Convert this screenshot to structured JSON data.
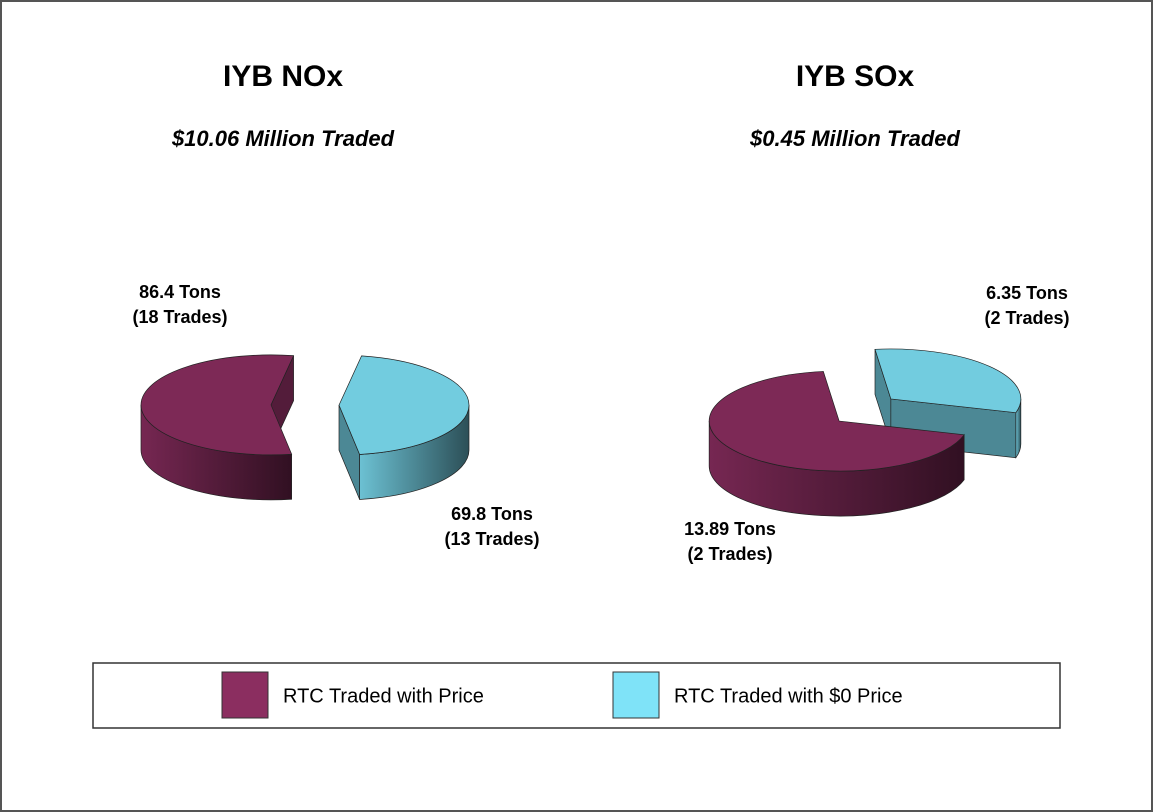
{
  "legend": {
    "labels": [
      "RTC Traded with Price",
      "RTC Traded with $0 Price"
    ],
    "colors": [
      "#8b2e60",
      "#7fe3f8"
    ]
  },
  "chart_data": [
    {
      "type": "pie",
      "title": "IYB NOx",
      "subtitle": "$10.06 Million Traded",
      "values": [
        86.4,
        69.8
      ],
      "value_labels": [
        "86.4 Tons",
        "69.8 Tons"
      ],
      "trades": [
        18,
        13
      ],
      "trades_labels": [
        "(18 Trades)",
        "(13 Trades)"
      ]
    },
    {
      "type": "pie",
      "title": "IYB SOx",
      "subtitle": "$0.45 Million Traded",
      "values": [
        13.89,
        6.35
      ],
      "value_labels": [
        "13.89 Tons",
        "6.35 Tons"
      ],
      "trades": [
        2,
        2
      ],
      "trades_labels": [
        "(2 Trades)",
        "(2 Trades)"
      ]
    }
  ]
}
